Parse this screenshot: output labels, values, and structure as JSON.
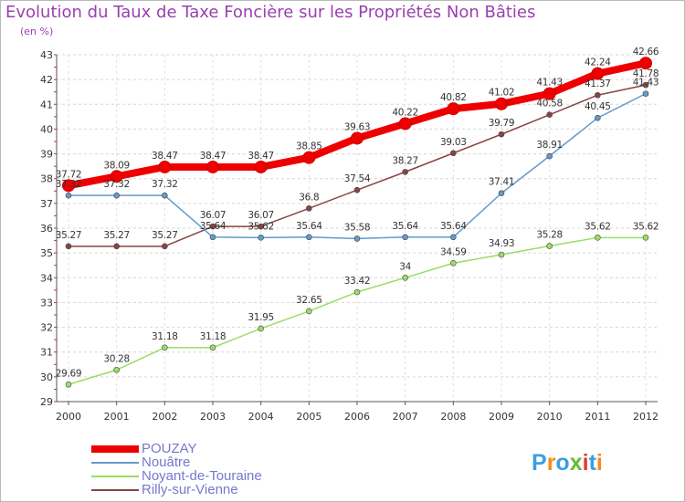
{
  "chart_data": {
    "type": "line",
    "title": "Evolution du Taux de Taxe Foncière sur les Propriétés Non Bâties",
    "unit_label": "(en %)",
    "x": [
      "2000",
      "2001",
      "2002",
      "2003",
      "2004",
      "2005",
      "2006",
      "2007",
      "2008",
      "2009",
      "2010",
      "2011",
      "2012"
    ],
    "ylim": [
      29,
      43
    ],
    "y_ticks": [
      "29",
      "30",
      "31",
      "32",
      "33",
      "34",
      "35",
      "36",
      "37",
      "38",
      "39",
      "40",
      "41",
      "42",
      "43"
    ],
    "grid": "horizontal dashed",
    "legend_position": "bottom-left",
    "series": [
      {
        "name": "POUZAY",
        "color": "#ee0000",
        "values": [
          37.72,
          38.09,
          38.47,
          38.47,
          38.47,
          38.85,
          39.63,
          40.22,
          40.82,
          41.02,
          41.43,
          42.24,
          42.66
        ],
        "labels": [
          "37.72",
          "38.09",
          "38.47",
          "38.47",
          "38.47",
          "38.85",
          "39.63",
          "40.22",
          "40.82",
          "41.02",
          "41.43",
          "42.24",
          "42.66"
        ]
      },
      {
        "name": "Nouâtre",
        "color": "#6699cc",
        "values": [
          37.32,
          37.32,
          37.32,
          35.64,
          35.62,
          35.64,
          35.58,
          35.64,
          35.64,
          37.41,
          38.91,
          40.45,
          41.43
        ],
        "labels": [
          "37.32",
          "37.32",
          "37.32",
          "35.64",
          "35.62",
          "35.64",
          "35.58",
          "35.64",
          "35.64",
          "37.41",
          "38.91",
          "40.45",
          "41.43"
        ]
      },
      {
        "name": "Noyant-de-Touraine",
        "color": "#99dd66",
        "values": [
          29.69,
          30.28,
          31.18,
          31.18,
          31.95,
          32.65,
          33.42,
          34,
          34.59,
          34.93,
          35.28,
          35.62,
          35.62
        ],
        "labels": [
          "29.69",
          "30.28",
          "31.18",
          "31.18",
          "31.95",
          "32.65",
          "33.42",
          "34",
          "34.59",
          "34.93",
          "35.28",
          "35.62",
          "35.62"
        ]
      },
      {
        "name": "Rilly-sur-Vienne",
        "color": "#884444",
        "values": [
          35.27,
          35.27,
          35.27,
          36.07,
          36.07,
          36.8,
          37.54,
          38.27,
          39.03,
          39.79,
          40.58,
          41.37,
          41.78
        ],
        "labels": [
          "35.27",
          "35.27",
          "35.27",
          "36.07",
          "36.07",
          "36.8",
          "37.54",
          "38.27",
          "39.03",
          "39.79",
          "40.58",
          "41.37",
          "41.78"
        ]
      }
    ]
  },
  "logo": {
    "text": "Proxiti",
    "colors": [
      "#3aa0de",
      "#f28c1e",
      "#3aa0de",
      "#66bb33",
      "#e53935",
      "#3aa0de",
      "#f28c1e"
    ]
  }
}
